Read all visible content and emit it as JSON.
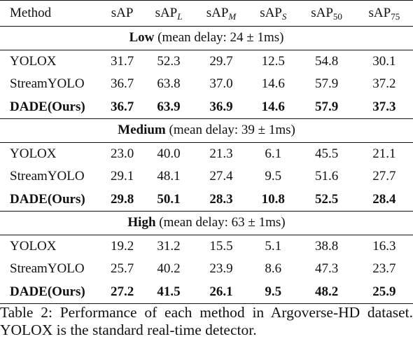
{
  "table": {
    "headers": {
      "method": "Method",
      "sap": "sAP",
      "sap_l": {
        "base": "sAP",
        "sub": "L"
      },
      "sap_m": {
        "base": "sAP",
        "sub": "M"
      },
      "sap_s": {
        "base": "sAP",
        "sub": "S"
      },
      "sap_50": {
        "base": "sAP",
        "sub": "50"
      },
      "sap_75": {
        "base": "sAP",
        "sub": "75"
      }
    },
    "sections": [
      {
        "name": "Low",
        "detail": "(mean delay: 24 ± 1ms)",
        "rows": [
          {
            "method": "YOLOX",
            "values": [
              "31.7",
              "52.3",
              "29.7",
              "12.5",
              "54.8",
              "30.1"
            ],
            "bold": [
              false,
              false,
              false,
              false,
              false,
              false
            ],
            "row_bold": false
          },
          {
            "method": "StreamYOLO",
            "values": [
              "36.7",
              "63.8",
              "37.0",
              "14.6",
              "57.9",
              "37.2"
            ],
            "bold": [
              true,
              false,
              true,
              true,
              true,
              false
            ],
            "row_bold": false
          },
          {
            "method": "DADE(Ours)",
            "values": [
              "36.7",
              "63.9",
              "36.9",
              "14.6",
              "57.9",
              "37.3"
            ],
            "bold": [
              true,
              true,
              false,
              true,
              true,
              true
            ],
            "row_bold": true
          }
        ]
      },
      {
        "name": "Medium",
        "detail": "(mean delay: 39 ± 1ms)",
        "rows": [
          {
            "method": "YOLOX",
            "values": [
              "23.0",
              "40.0",
              "21.3",
              "6.1",
              "45.5",
              "21.1"
            ],
            "bold": [
              false,
              false,
              false,
              false,
              false,
              false
            ],
            "row_bold": false
          },
          {
            "method": "StreamYOLO",
            "values": [
              "29.1",
              "48.1",
              "27.4",
              "9.5",
              "51.6",
              "27.7"
            ],
            "bold": [
              false,
              false,
              false,
              false,
              false,
              false
            ],
            "row_bold": false
          },
          {
            "method": "DADE(Ours)",
            "values": [
              "29.8",
              "50.1",
              "28.3",
              "10.8",
              "52.5",
              "28.4"
            ],
            "bold": [
              true,
              true,
              true,
              true,
              true,
              true
            ],
            "row_bold": true
          }
        ]
      },
      {
        "name": "High",
        "detail": "(mean delay: 63 ± 1ms)",
        "rows": [
          {
            "method": "YOLOX",
            "values": [
              "19.2",
              "31.2",
              "15.5",
              "5.1",
              "38.8",
              "16.3"
            ],
            "bold": [
              false,
              false,
              false,
              false,
              false,
              false
            ],
            "row_bold": false
          },
          {
            "method": "StreamYOLO",
            "values": [
              "25.7",
              "40.2",
              "23.9",
              "8.6",
              "47.3",
              "23.7"
            ],
            "bold": [
              false,
              false,
              false,
              false,
              false,
              false
            ],
            "row_bold": false
          },
          {
            "method": "DADE(Ours)",
            "values": [
              "27.2",
              "41.5",
              "26.1",
              "9.5",
              "48.2",
              "25.9"
            ],
            "bold": [
              true,
              true,
              true,
              true,
              true,
              true
            ],
            "row_bold": true
          }
        ]
      }
    ]
  },
  "caption": "Table 2:  Performance of each method in Argoverse-HD dataset. YOLOX is the standard real-time detector."
}
